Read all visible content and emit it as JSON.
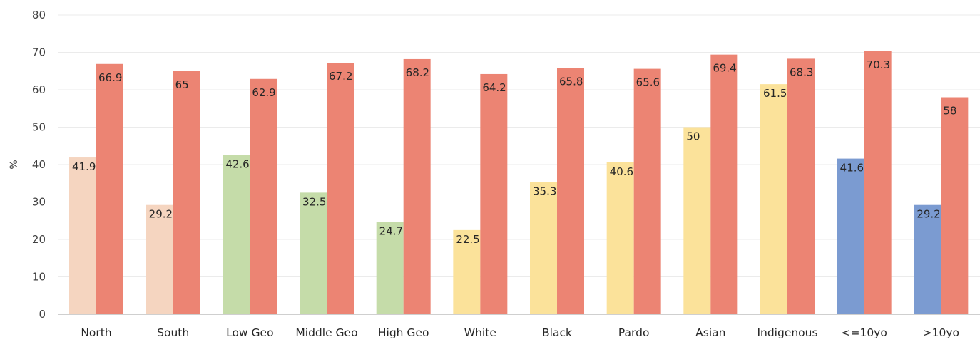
{
  "chart_data": {
    "type": "bar",
    "title": "",
    "xlabel": "",
    "ylabel": "%",
    "ylim": [
      0,
      80
    ],
    "yticks": [
      0,
      10,
      20,
      30,
      40,
      50,
      60,
      70,
      80
    ],
    "grid": true,
    "legend": "none",
    "categories": [
      "North",
      "South",
      "Low Geo",
      "Middle Geo",
      "High Geo",
      "White",
      "Black",
      "Pardo",
      "Asian",
      "Indigenous",
      "<=10yo",
      ">10yo"
    ],
    "series": [
      {
        "values": [
          41.9,
          29.2,
          42.6,
          32.5,
          24.7,
          22.5,
          35.3,
          40.6,
          50,
          61.5,
          41.6,
          29.2
        ],
        "colors": [
          "#f5d5c0",
          "#f5d5c0",
          "#c5dca9",
          "#c5dca9",
          "#c5dca9",
          "#fbe29a",
          "#fbe29a",
          "#fbe29a",
          "#fbe29a",
          "#fbe29a",
          "#7b9bd1",
          "#7b9bd1"
        ]
      },
      {
        "values": [
          66.9,
          65,
          62.9,
          67.2,
          68.2,
          64.2,
          65.8,
          65.6,
          69.4,
          68.3,
          70.3,
          58
        ],
        "color": "#ec8473"
      }
    ]
  }
}
